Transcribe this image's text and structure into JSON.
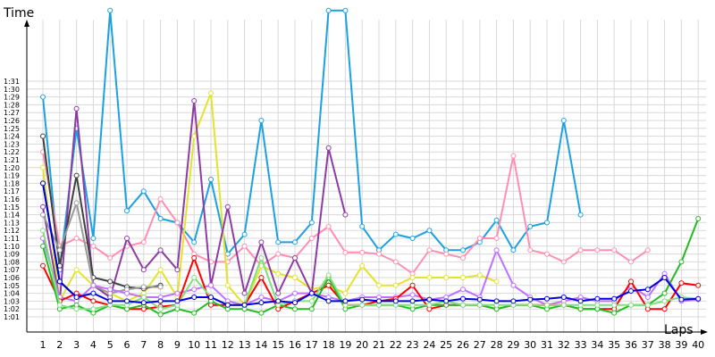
{
  "chart_data": {
    "type": "line",
    "xlabel": "Laps",
    "ylabel": "Time",
    "x_ticks": [
      1,
      2,
      3,
      4,
      5,
      6,
      7,
      8,
      9,
      10,
      11,
      12,
      13,
      14,
      15,
      16,
      17,
      18,
      19,
      20,
      21,
      22,
      23,
      24,
      25,
      26,
      27,
      28,
      29,
      30,
      31,
      32,
      33,
      34,
      35,
      36,
      37,
      38,
      39,
      40
    ],
    "y_ticks": [
      "1:01",
      "1:02",
      "1:03",
      "1:04",
      "1:05",
      "1:06",
      "1:07",
      "1:08",
      "1:09",
      "1:10",
      "1:11",
      "1:12",
      "1:13",
      "1:14",
      "1:15",
      "1:16",
      "1:17",
      "1:18",
      "1:19",
      "1:20",
      "1:21",
      "1:22",
      "1:23",
      "1:24",
      "1:25",
      "1:26",
      "1:27",
      "1:28",
      "1:29",
      "1:30",
      "1:31"
    ],
    "ylim_seconds": [
      60,
      92
    ],
    "xlim": [
      0.5,
      40
    ],
    "grid": true,
    "series": [
      {
        "color": "#1ba1e2",
        "x": [
          1,
          2,
          3,
          4,
          5,
          6,
          7,
          8,
          9,
          10,
          11,
          12,
          13,
          14,
          15,
          16,
          17,
          18,
          19,
          20,
          21,
          22,
          23,
          24,
          25,
          26,
          27,
          28,
          29,
          30,
          31,
          32,
          33
        ],
        "y": [
          89,
          67,
          85,
          71,
          100,
          74.5,
          77,
          73.5,
          73,
          70.5,
          78.5,
          69,
          71.5,
          86,
          70.5,
          70.5,
          73,
          100,
          100,
          72.5,
          69.5,
          71.5,
          71,
          72,
          69.5,
          69.5,
          70.5,
          73.3,
          69.5,
          72.5,
          73,
          86,
          74
        ]
      },
      {
        "color": "#ff8fb0",
        "x": [
          1,
          2,
          3,
          4,
          5,
          6,
          7,
          8,
          9,
          10,
          11,
          12,
          13,
          14,
          15,
          16,
          17,
          18,
          19,
          20,
          21,
          22,
          23,
          24,
          25,
          26,
          27,
          28,
          29,
          30,
          31,
          32,
          33,
          34,
          35,
          36,
          37
        ],
        "y": [
          82,
          70,
          71,
          70,
          68.5,
          70,
          70.5,
          76,
          73,
          69,
          68,
          68,
          70,
          67.5,
          69,
          68.5,
          71,
          72.5,
          69.2,
          69.2,
          69,
          68,
          66.5,
          69.5,
          69,
          68.5,
          71,
          71,
          81.5,
          69.5,
          69,
          68,
          69.5,
          69.5,
          69.5,
          68,
          69.5
        ]
      },
      {
        "color": "#e3e32b",
        "x": [
          1,
          2,
          3,
          4,
          5,
          6,
          7,
          8,
          9,
          10,
          11,
          12,
          13,
          14,
          15,
          16,
          17,
          18,
          19,
          20,
          21,
          22,
          23,
          24,
          25,
          26,
          27,
          28
        ],
        "y": [
          80,
          63,
          67,
          65,
          64,
          63,
          64,
          67,
          63.5,
          84,
          89.5,
          65,
          62.5,
          67.5,
          66.5,
          66,
          64.5,
          65,
          64,
          67.5,
          65,
          65,
          66,
          66,
          66,
          66,
          66.3,
          65.5
        ]
      },
      {
        "color": "#8e3ba3",
        "x": [
          1,
          2,
          3,
          4,
          5,
          6,
          7,
          8,
          9,
          10,
          11,
          12,
          13,
          14,
          15,
          16,
          17,
          18,
          19
        ],
        "y": [
          75,
          63,
          87.5,
          65,
          63.5,
          71,
          67,
          69.5,
          67,
          88.5,
          65,
          75,
          64,
          70.5,
          64,
          68.5,
          64,
          82.5,
          74
        ]
      },
      {
        "color": "#404040",
        "x": [
          1,
          2,
          3,
          4,
          5,
          6,
          7,
          8
        ],
        "y": [
          84,
          67.5,
          79,
          66,
          65.5,
          64.8,
          64.6,
          65
        ]
      },
      {
        "color": "#999999",
        "x": [
          1,
          2,
          3,
          4,
          5,
          6,
          7,
          8
        ],
        "y": [
          74,
          69.5,
          75.5,
          65,
          64,
          64.5,
          64.8,
          64.8
        ]
      },
      {
        "color": "#1a1a80",
        "x": [
          1,
          2,
          3
        ],
        "y": [
          78,
          65.5,
          63.5
        ]
      },
      {
        "color": "#c070ff",
        "x": [
          1,
          2,
          3,
          4,
          5,
          6,
          7,
          8,
          9,
          10,
          11,
          12,
          13,
          14,
          15,
          16,
          17,
          18,
          19,
          20,
          21,
          22,
          23,
          24,
          25,
          26,
          27,
          28,
          29,
          30,
          31,
          32,
          33,
          34,
          35,
          36,
          37,
          38,
          39,
          40
        ],
        "y": [
          71,
          63.5,
          63,
          65,
          64.5,
          64,
          63.5,
          63.5,
          64,
          64.5,
          65,
          63,
          62.5,
          63.5,
          63,
          64,
          64,
          63.5,
          63,
          63.5,
          63.5,
          63.5,
          63.8,
          63.2,
          63.5,
          64.5,
          63.5,
          69.5,
          65,
          63.5,
          62.5,
          63,
          63.5,
          63,
          63,
          65,
          63.5,
          66.5,
          63,
          63.2
        ]
      },
      {
        "color": "#ff0000",
        "x": [
          1,
          2,
          3,
          4,
          5,
          6,
          7,
          8,
          9,
          10,
          11,
          12,
          13,
          14,
          15,
          16,
          17,
          18,
          19,
          20,
          21,
          22,
          23,
          24,
          25,
          26,
          27,
          28,
          29,
          30,
          31,
          32,
          33,
          34,
          35,
          36,
          37,
          38,
          39,
          40
        ],
        "y": [
          67.5,
          63,
          64,
          63,
          62.5,
          62,
          62,
          62.3,
          62.5,
          68.5,
          62.5,
          62.5,
          62.5,
          66,
          62,
          63,
          64,
          65,
          62.5,
          62.5,
          63,
          63.3,
          65,
          62,
          62.5,
          62.5,
          62.5,
          62,
          62.5,
          62.5,
          62.5,
          62.5,
          62,
          62,
          62,
          65.5,
          62,
          62,
          65.3,
          65
        ]
      },
      {
        "color": "#22bb22",
        "x": [
          1,
          2,
          3,
          4,
          5,
          6,
          7,
          8,
          9,
          10,
          11,
          12,
          13,
          14,
          15,
          16,
          17,
          18,
          19,
          20,
          21,
          22,
          23,
          24,
          25,
          26,
          27,
          28,
          29,
          30,
          31,
          32,
          33,
          34,
          35,
          36,
          37,
          38,
          39,
          40
        ],
        "y": [
          70,
          62,
          62.5,
          61.5,
          62.5,
          62,
          62.5,
          61.3,
          62,
          61.5,
          63,
          62,
          62,
          61.5,
          62.5,
          62,
          62,
          66,
          62,
          62.5,
          62.5,
          62.5,
          62,
          62.5,
          62.5,
          62.5,
          62.5,
          62,
          62.5,
          62.5,
          62,
          62.5,
          62,
          62,
          61.5,
          62.5,
          62.5,
          64,
          68,
          73.5
        ]
      },
      {
        "color": "#7ee07e",
        "x": [
          1,
          2,
          3,
          4,
          5,
          6,
          7,
          8,
          9,
          10,
          11,
          12,
          13,
          14,
          15,
          16,
          17,
          18,
          19,
          20,
          21,
          22,
          23,
          24,
          25,
          26,
          27,
          28,
          29,
          30,
          31,
          32,
          33,
          34,
          35,
          36,
          37,
          38,
          39,
          40
        ],
        "y": [
          72,
          62.5,
          62,
          62,
          62.5,
          62.5,
          63.5,
          62,
          62.5,
          66,
          63.5,
          62.5,
          62.5,
          68.5,
          62.5,
          63,
          63,
          66.3,
          62.5,
          62.5,
          62.5,
          62.5,
          62.5,
          62.5,
          63,
          62.5,
          62.5,
          62.5,
          62.5,
          62.5,
          62.5,
          62.5,
          62.5,
          62.5,
          62.5,
          62.5,
          62.5,
          63,
          63.5,
          63.3
        ]
      },
      {
        "color": "#0000dd",
        "x": [
          1,
          2,
          3,
          4,
          5,
          6,
          7,
          8,
          9,
          10,
          11,
          12,
          13,
          14,
          15,
          16,
          17,
          18,
          19,
          20,
          21,
          22,
          23,
          24,
          25,
          26,
          27,
          28,
          29,
          30,
          31,
          32,
          33,
          34,
          35,
          36,
          37,
          38,
          39,
          40
        ],
        "y": [
          78,
          65.5,
          63.5,
          64,
          63,
          63,
          62.8,
          63,
          63,
          63.5,
          63.5,
          62.5,
          62.5,
          62.8,
          63,
          62.8,
          64,
          63,
          63,
          63.2,
          63,
          63,
          63,
          63.2,
          63,
          63.3,
          63.2,
          63,
          63,
          63.2,
          63.3,
          63.5,
          63,
          63.3,
          63.3,
          64.3,
          64.5,
          66,
          63.2,
          63.3
        ]
      }
    ]
  }
}
